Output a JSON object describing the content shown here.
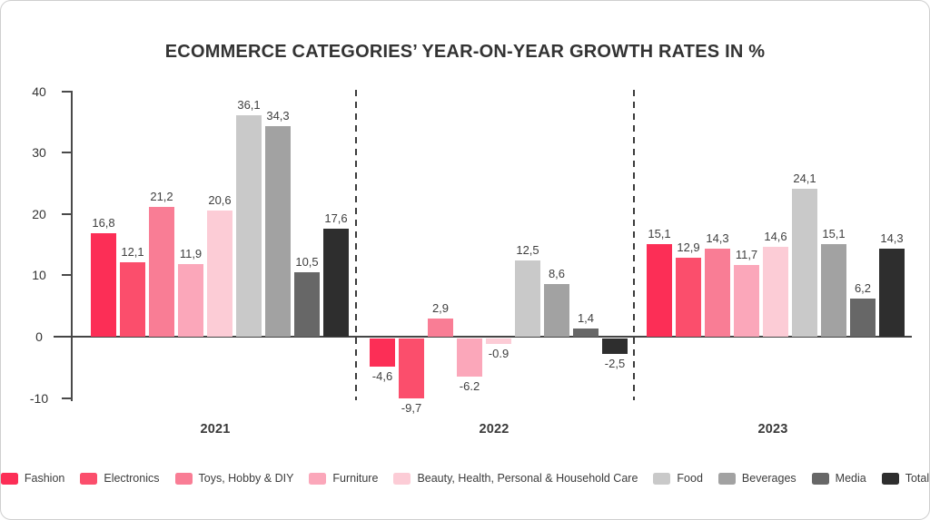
{
  "title": "ECOMMERCE CATEGORIES’ YEAR-ON-YEAR GROWTH RATES IN %",
  "chart_data": {
    "type": "bar",
    "title": "ECOMMERCE CATEGORIES’ YEAR-ON-YEAR GROWTH RATES IN %",
    "unit": "%",
    "ylim": [
      -10,
      40
    ],
    "yticks": [
      "40",
      "30",
      "20",
      "10",
      "0",
      "-10"
    ],
    "grid": false,
    "legend_position": "bottom",
    "categories": [
      "Fashion",
      "Electronics",
      "Toys, Hobby & DIY",
      "Furniture",
      "Beauty, Health, Personal & Household Care",
      "Food",
      "Beverages",
      "Media",
      "Total"
    ],
    "colors": [
      "#fc2e56",
      "#fb4e6c",
      "#f97d95",
      "#fba7ba",
      "#fcccd6",
      "#c9c9c9",
      "#a2a2a2",
      "#676767",
      "#2e2e2e"
    ],
    "groups": [
      {
        "label": "2021",
        "values": [
          16.8,
          12.1,
          21.2,
          11.9,
          20.6,
          36.1,
          34.3,
          10.5,
          17.6
        ],
        "labels": [
          "16,8",
          "12,1",
          "21,2",
          "11,9",
          "20,6",
          "36,1",
          "34,3",
          "10,5",
          "17,6"
        ]
      },
      {
        "label": "2022",
        "values": [
          -4.6,
          -9.7,
          2.9,
          -6.2,
          -0.9,
          12.5,
          8.6,
          1.4,
          -2.5
        ],
        "labels": [
          "-4,6",
          "-9,7",
          "2,9",
          "-6.2",
          "-0.9",
          "12,5",
          "8,6",
          "1,4",
          "-2,5"
        ]
      },
      {
        "label": "2023",
        "values": [
          15.1,
          12.9,
          14.3,
          11.7,
          14.6,
          24.1,
          15.1,
          6.2,
          14.3
        ],
        "labels": [
          "15,1",
          "12,9",
          "14,3",
          "11,7",
          "14,6",
          "24,1",
          "15,1",
          "6,2",
          "14,3"
        ]
      }
    ]
  }
}
